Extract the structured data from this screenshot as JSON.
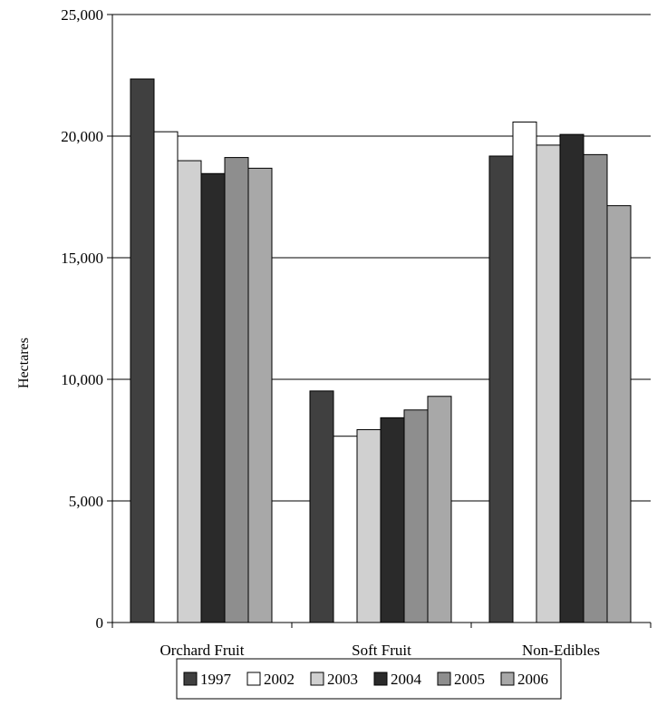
{
  "chart_data": {
    "type": "bar",
    "title": "",
    "xlabel": "",
    "ylabel": "Hectares",
    "ylim": [
      0,
      25000
    ],
    "yticks": [
      0,
      5000,
      10000,
      15000,
      20000,
      25000
    ],
    "ytick_labels": [
      "0",
      "5,000",
      "10,000",
      "15,000",
      "20,000",
      "25,000"
    ],
    "grid": "horizontal",
    "legend_position": "bottom",
    "categories": [
      "Orchard Fruit",
      "Soft Fruit",
      "Non-Edibles"
    ],
    "series": [
      {
        "name": "1997",
        "color": "#404040",
        "values": [
          22350,
          9520,
          19180
        ]
      },
      {
        "name": "2002",
        "color": "#ffffff",
        "values": [
          20180,
          7660,
          20580
        ]
      },
      {
        "name": "2003",
        "color": "#d0d0d0",
        "values": [
          18990,
          7930,
          19630
        ]
      },
      {
        "name": "2004",
        "color": "#2a2a2a",
        "values": [
          18460,
          8420,
          20070
        ]
      },
      {
        "name": "2005",
        "color": "#8e8e8e",
        "values": [
          19120,
          8740,
          19240
        ]
      },
      {
        "name": "2006",
        "color": "#a8a8a8",
        "values": [
          18680,
          9300,
          17140
        ]
      }
    ]
  }
}
